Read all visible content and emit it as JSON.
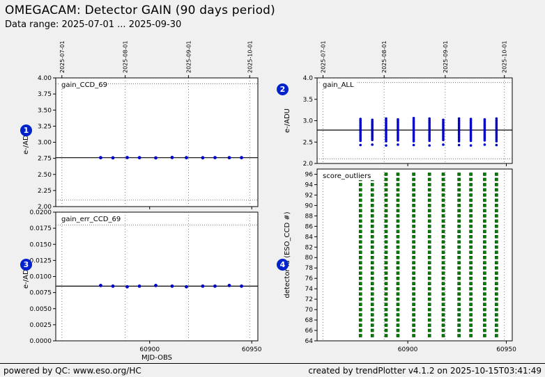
{
  "header": {
    "title": "OMEGACAM: Detector GAIN (90 days period)",
    "subtitle": "Data range: 2025-07-01 ... 2025-09-30"
  },
  "footer": {
    "left": "powered by QC: www.eso.org/HC",
    "right": "created by trendPlotter v4.1.2 on 2025-10-15T03:41:49"
  },
  "colors": {
    "background": "#f0f0f0",
    "panel_bg": "#ffffff",
    "point_blue": "#0000cc",
    "square_green": "#008000",
    "square_green_edge": "#004000",
    "badge_blue": "#0022cc",
    "mean_line": "#000000"
  },
  "axis": {
    "x_axis_label": "MJD-OBS"
  },
  "chart_data": [
    {
      "badge": "1",
      "title": "gain_CCD_69",
      "type": "scatter",
      "ylabel": "e-/ADU",
      "xlabel": "",
      "xlim": [
        60854,
        60953
      ],
      "ylim": [
        2.0,
        4.0
      ],
      "yticks": [
        [
          2.0,
          "2.00"
        ],
        [
          2.25,
          "2.25"
        ],
        [
          2.5,
          "2.50"
        ],
        [
          2.75,
          "2.75"
        ],
        [
          3.0,
          "3.00"
        ],
        [
          3.25,
          "3.25"
        ],
        [
          3.5,
          "3.50"
        ],
        [
          3.75,
          "3.75"
        ],
        [
          4.0,
          "4.00"
        ]
      ],
      "xticks": [
        [
          60900,
          "60900"
        ],
        [
          60950,
          "60950"
        ]
      ],
      "show_x_labels": false,
      "top_date_ticks": [
        [
          60857,
          "2025-07-01"
        ],
        [
          60888,
          "2025-08-01"
        ],
        [
          60919,
          "2025-09-01"
        ],
        [
          60949,
          "2025-10-01"
        ]
      ],
      "show_top_labels": true,
      "month_vlines": [
        60857,
        60888,
        60919,
        60949
      ],
      "thresholds": [
        2.1,
        3.91
      ],
      "mean_line": 2.76,
      "x": [
        60876,
        60882,
        60889,
        60895,
        60903,
        60911,
        60918,
        60926,
        60932,
        60939,
        60945
      ],
      "y": [
        2.76,
        2.758,
        2.762,
        2.76,
        2.757,
        2.763,
        2.76,
        2.759,
        2.761,
        2.76,
        2.76
      ]
    },
    {
      "badge": "2",
      "title": "gain_ALL",
      "type": "scatter-clusters",
      "ylabel": "e-/ADU",
      "xlabel": "",
      "xlim": [
        60854,
        60953
      ],
      "ylim": [
        2.0,
        4.0
      ],
      "yticks": [
        [
          2.0,
          "2.0"
        ],
        [
          2.5,
          "2.5"
        ],
        [
          3.0,
          "3.0"
        ],
        [
          3.5,
          "3.5"
        ],
        [
          4.0,
          "4.0"
        ]
      ],
      "xticks": [
        [
          60900,
          "60900"
        ],
        [
          60950,
          "60950"
        ]
      ],
      "show_x_labels": false,
      "top_date_ticks": [
        [
          60857,
          "2025-07-01"
        ],
        [
          60888,
          "2025-08-01"
        ],
        [
          60919,
          "2025-09-01"
        ],
        [
          60949,
          "2025-10-01"
        ]
      ],
      "show_top_labels": true,
      "month_vlines": [
        60857,
        60888,
        60919,
        60949
      ],
      "thresholds": [
        2.11,
        3.89
      ],
      "mean_line": 2.78,
      "clusters": [
        {
          "x": 60876,
          "y_min": 2.53,
          "y_max": 3.04,
          "low": 2.43
        },
        {
          "x": 60882,
          "y_min": 2.55,
          "y_max": 3.02,
          "low": 2.44
        },
        {
          "x": 60889,
          "y_min": 2.52,
          "y_max": 3.05,
          "low": 2.42
        },
        {
          "x": 60895,
          "y_min": 2.54,
          "y_max": 3.03,
          "low": 2.44
        },
        {
          "x": 60903,
          "y_min": 2.52,
          "y_max": 3.06,
          "low": 2.43
        },
        {
          "x": 60911,
          "y_min": 2.53,
          "y_max": 3.05,
          "low": 2.42
        },
        {
          "x": 60918,
          "y_min": 2.55,
          "y_max": 3.02,
          "low": 2.44
        },
        {
          "x": 60926,
          "y_min": 2.52,
          "y_max": 3.05,
          "low": 2.43
        },
        {
          "x": 60932,
          "y_min": 2.53,
          "y_max": 3.04,
          "low": 2.42
        },
        {
          "x": 60939,
          "y_min": 2.54,
          "y_max": 3.03,
          "low": 2.44
        },
        {
          "x": 60945,
          "y_min": 2.52,
          "y_max": 3.05,
          "low": 2.43
        }
      ]
    },
    {
      "badge": "3",
      "title": "gain_err_CCD_69",
      "type": "scatter",
      "ylabel": "e-/ADU",
      "xlabel": "MJD-OBS",
      "xlim": [
        60854,
        60953
      ],
      "ylim": [
        0.0,
        0.02
      ],
      "yticks": [
        [
          0.0,
          "0.0000"
        ],
        [
          0.0025,
          "0.0025"
        ],
        [
          0.005,
          "0.0050"
        ],
        [
          0.0075,
          "0.0075"
        ],
        [
          0.01,
          "0.0100"
        ],
        [
          0.0125,
          "0.0125"
        ],
        [
          0.015,
          "0.0150"
        ],
        [
          0.0175,
          "0.0175"
        ],
        [
          0.02,
          "0.0200"
        ]
      ],
      "xticks": [
        [
          60900,
          "60900"
        ],
        [
          60950,
          "60950"
        ]
      ],
      "show_x_labels": true,
      "top_date_ticks": [
        [
          60857,
          "2025-07-01"
        ],
        [
          60888,
          "2025-08-01"
        ],
        [
          60919,
          "2025-09-01"
        ],
        [
          60949,
          "2025-10-01"
        ]
      ],
      "show_top_labels": false,
      "month_vlines": [
        60857,
        60888,
        60919,
        60949
      ],
      "thresholds": [
        0.018
      ],
      "mean_line": 0.0085,
      "x": [
        60876,
        60882,
        60889,
        60895,
        60903,
        60911,
        60918,
        60926,
        60932,
        60939,
        60945
      ],
      "y": [
        0.0086,
        0.0085,
        0.0084,
        0.0085,
        0.0086,
        0.0085,
        0.0084,
        0.0085,
        0.0085,
        0.0086,
        0.0085
      ]
    },
    {
      "badge": "4",
      "title": "score_outliers",
      "type": "square-columns",
      "ylabel": "detector id (ESO_CCD #)",
      "xlabel": "",
      "xlim": [
        60854,
        60953
      ],
      "ylim": [
        64,
        97
      ],
      "yticks": [
        [
          64,
          "64"
        ],
        [
          66,
          "66"
        ],
        [
          68,
          "68"
        ],
        [
          70,
          "70"
        ],
        [
          72,
          "72"
        ],
        [
          74,
          "74"
        ],
        [
          76,
          "76"
        ],
        [
          78,
          "78"
        ],
        [
          80,
          "80"
        ],
        [
          82,
          "82"
        ],
        [
          84,
          "84"
        ],
        [
          86,
          "86"
        ],
        [
          88,
          "88"
        ],
        [
          90,
          "90"
        ],
        [
          92,
          "92"
        ],
        [
          94,
          "94"
        ],
        [
          96,
          "96"
        ]
      ],
      "xticks": [
        [
          60900,
          "60900"
        ],
        [
          60950,
          "60950"
        ]
      ],
      "show_x_labels": true,
      "top_date_ticks": [
        [
          60857,
          "2025-07-01"
        ],
        [
          60888,
          "2025-08-01"
        ],
        [
          60919,
          "2025-09-01"
        ],
        [
          60949,
          "2025-10-01"
        ]
      ],
      "show_top_labels": false,
      "month_vlines": [
        60857,
        60888,
        60919,
        60949
      ],
      "thresholds": [],
      "column_x": [
        60876,
        60882,
        60889,
        60895,
        60903,
        60911,
        60918,
        60926,
        60932,
        60939,
        60945
      ],
      "id_min": 65,
      "id_max": 96
    }
  ]
}
